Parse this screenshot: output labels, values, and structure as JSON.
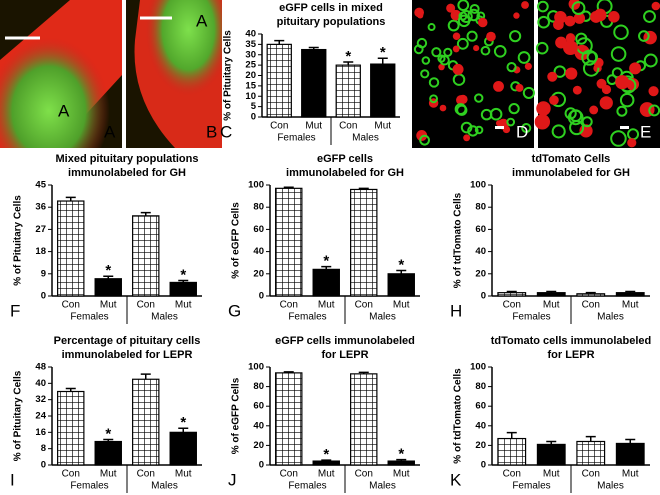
{
  "micrographs": [
    {
      "panel": "A",
      "inset_label": "A"
    },
    {
      "panel": "B",
      "inset_label": "A"
    },
    {
      "panel": "D"
    },
    {
      "panel": "E"
    }
  ],
  "chart_data": [
    {
      "type": "bar",
      "panel": "C",
      "title": [
        "eGFP cells in mixed",
        "pituitary populations"
      ],
      "ylabel": "% of Pituitary Cells",
      "categories": [
        "Con",
        "Mut",
        "Con",
        "Mut"
      ],
      "groups": [
        "Females",
        "Males"
      ],
      "values": [
        35,
        32.5,
        25,
        25.5
      ],
      "errors": [
        1.8,
        1,
        1.5,
        2.8
      ],
      "significance": [
        null,
        null,
        "*",
        "*"
      ],
      "ylim": [
        0,
        40
      ],
      "yticks": [
        0,
        5,
        10,
        15,
        20,
        25,
        30,
        35,
        40
      ]
    },
    {
      "type": "bar",
      "panel": "F",
      "title": [
        "Mixed pituitary populations",
        "immunolabeled for GH"
      ],
      "ylabel": "% of Pituitary Cells",
      "categories": [
        "Con",
        "Mut",
        "Con",
        "Mut"
      ],
      "groups": [
        "Females",
        "Males"
      ],
      "values": [
        38.5,
        7,
        32.5,
        5.5
      ],
      "errors": [
        1.5,
        1,
        1.3,
        0.8
      ],
      "significance": [
        null,
        "*",
        null,
        "*"
      ],
      "ylim": [
        0,
        45
      ],
      "yticks": [
        0,
        9,
        18,
        27,
        36,
        45
      ]
    },
    {
      "type": "bar",
      "panel": "G",
      "title": [
        "eGFP cells",
        "immunolabeled for GH"
      ],
      "ylabel": "% of eGFP Cells",
      "categories": [
        "Con",
        "Mut",
        "Con",
        "Mut"
      ],
      "groups": [
        "Females",
        "Males"
      ],
      "values": [
        97,
        24,
        96,
        20
      ],
      "errors": [
        1,
        2.5,
        1,
        3
      ],
      "significance": [
        null,
        "*",
        null,
        "*"
      ],
      "ylim": [
        0,
        100
      ],
      "yticks": [
        0,
        20,
        40,
        60,
        80,
        100
      ]
    },
    {
      "type": "bar",
      "panel": "H",
      "title": [
        "tdTomato Cells",
        "immunolabeled for GH"
      ],
      "ylabel": "% of tdTomato Cells",
      "categories": [
        "Con",
        "Mut",
        "Con",
        "Mut"
      ],
      "groups": [
        "Females",
        "Males"
      ],
      "values": [
        3,
        3,
        2,
        3
      ],
      "errors": [
        1,
        1,
        1,
        1
      ],
      "significance": [
        null,
        null,
        null,
        null
      ],
      "ylim": [
        0,
        100
      ],
      "yticks": [
        0,
        20,
        40,
        60,
        80,
        100
      ]
    },
    {
      "type": "bar",
      "panel": "I",
      "title": [
        "Percentage of pituitary cells",
        "immunolabeled for LEPR"
      ],
      "ylabel": "% of Pituitary Cells",
      "categories": [
        "Con",
        "Mut",
        "Con",
        "Mut"
      ],
      "groups": [
        "Females",
        "Males"
      ],
      "values": [
        36,
        11.5,
        42,
        16
      ],
      "errors": [
        1.5,
        1,
        2.5,
        2
      ],
      "significance": [
        null,
        "*",
        null,
        "*"
      ],
      "ylim": [
        0,
        48
      ],
      "yticks": [
        0,
        8,
        16,
        24,
        32,
        40,
        48
      ]
    },
    {
      "type": "bar",
      "panel": "J",
      "title": [
        "eGFP cells immunolabeled",
        "for LEPR"
      ],
      "ylabel": "% of eGFP Cells",
      "categories": [
        "Con",
        "Mut",
        "Con",
        "Mut"
      ],
      "groups": [
        "Females",
        "Males"
      ],
      "values": [
        94,
        4,
        93,
        4
      ],
      "errors": [
        1,
        1,
        1.5,
        1.5
      ],
      "significance": [
        null,
        "*",
        null,
        "*"
      ],
      "ylim": [
        0,
        100
      ],
      "yticks": [
        0,
        20,
        40,
        60,
        80,
        100
      ]
    },
    {
      "type": "bar",
      "panel": "K",
      "title": [
        "tdTomato cells immunolabeled",
        "for LEPR"
      ],
      "ylabel": "% of tdTomato Cells",
      "categories": [
        "Con",
        "Mut",
        "Con",
        "Mut"
      ],
      "groups": [
        "Females",
        "Males"
      ],
      "values": [
        27,
        21,
        24,
        22
      ],
      "errors": [
        6,
        3,
        5,
        4
      ],
      "significance": [
        null,
        null,
        null,
        null
      ],
      "ylim": [
        0,
        100
      ],
      "yticks": [
        0,
        20,
        40,
        60,
        80,
        100
      ]
    }
  ]
}
